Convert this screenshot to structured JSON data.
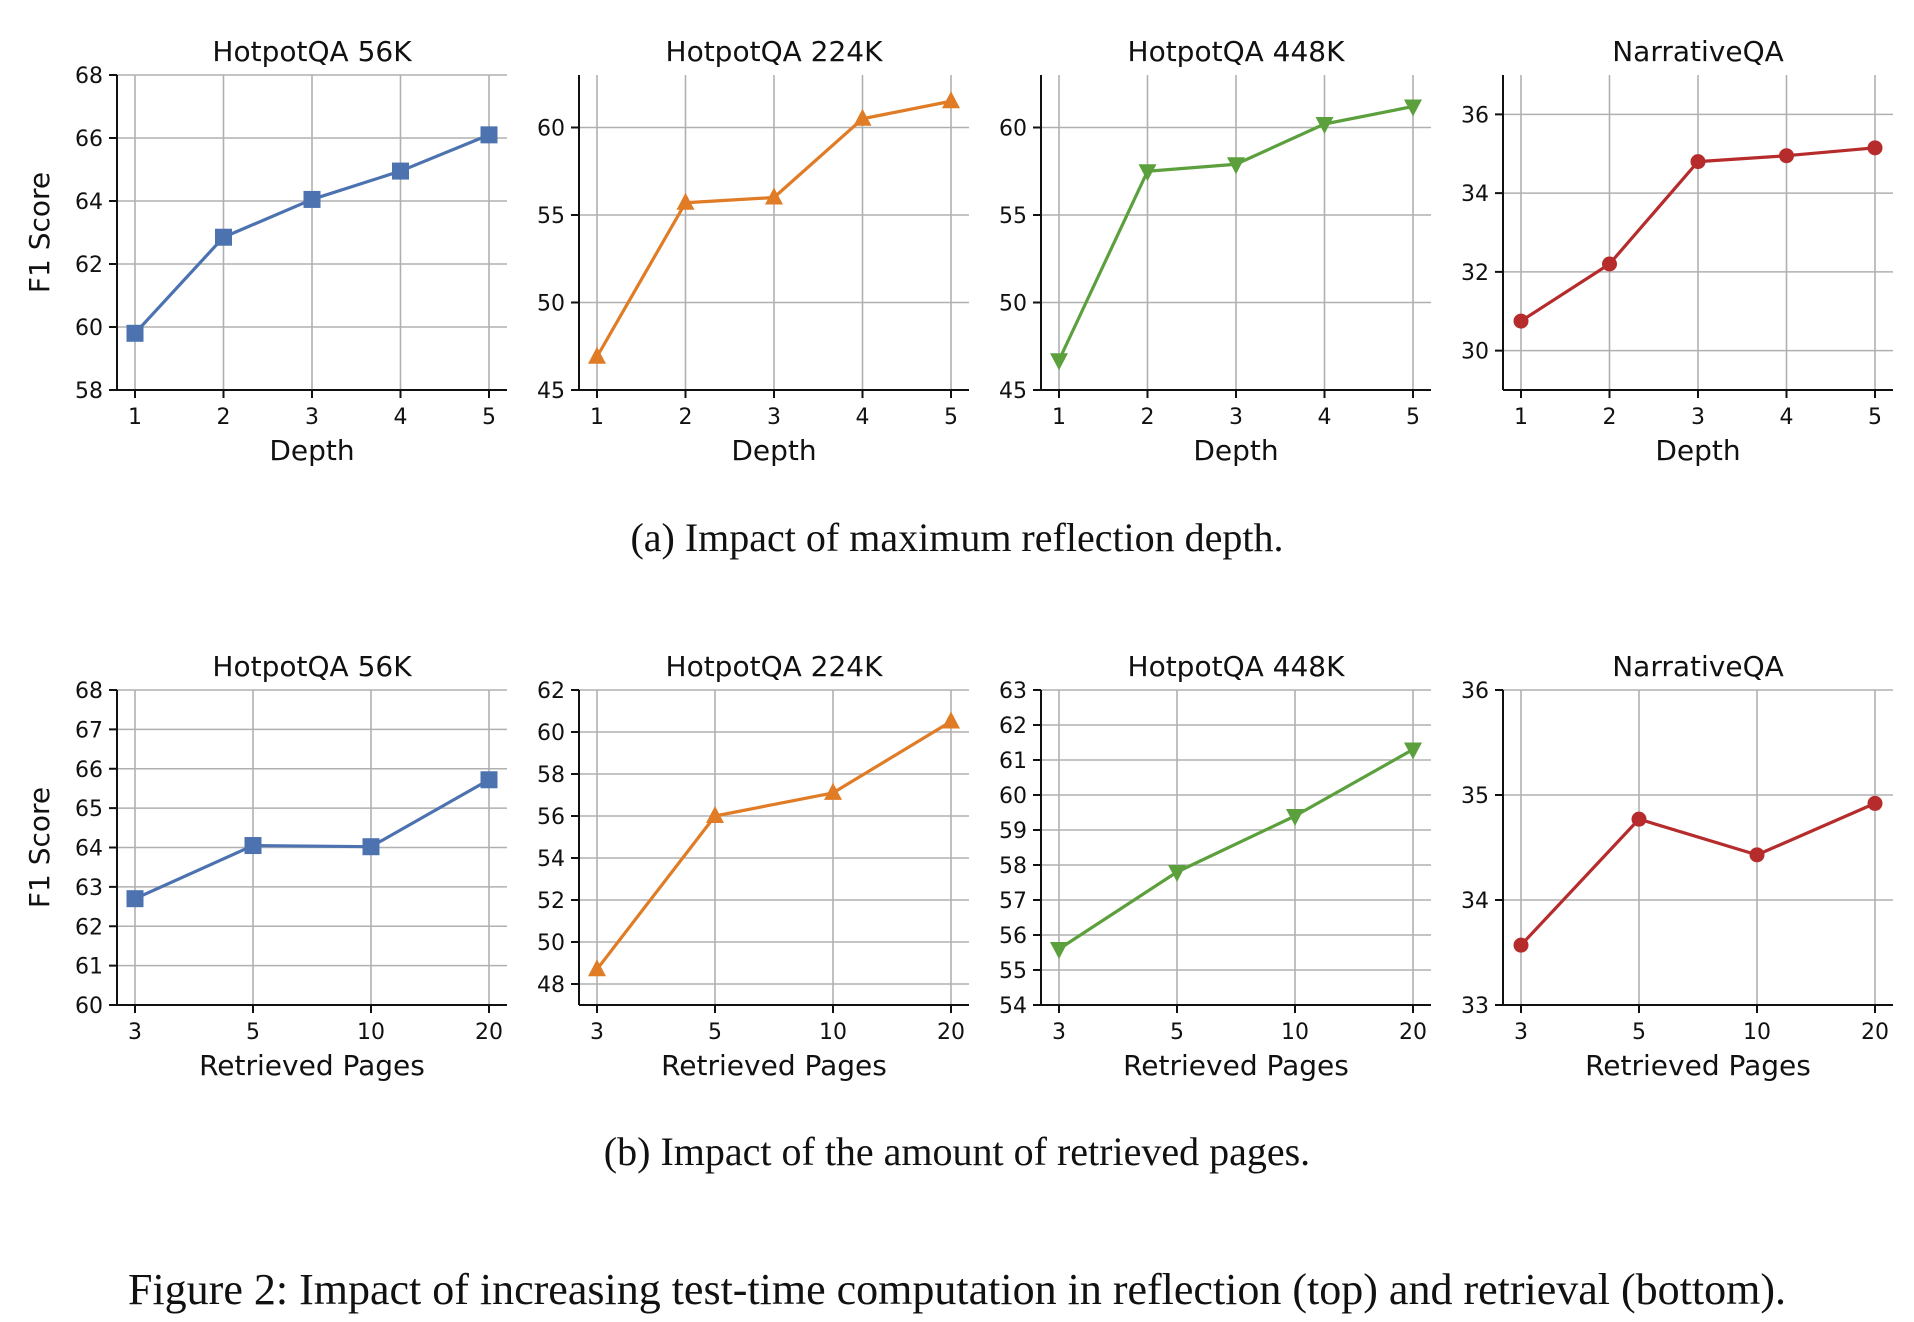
{
  "figure_caption": "Figure 2: Impact of increasing test-time computation in reflection (top) and retrieval (bottom).",
  "row_captions": [
    "(a) Impact of maximum reflection depth.",
    "(b) Impact of the amount of retrieved pages."
  ],
  "colors": {
    "blue": "#4c72b0",
    "orange": "#e07b26",
    "green": "#5ba03c",
    "red": "#b62b2b",
    "grid": "#b0b0b0"
  },
  "chart_data": [
    {
      "type": "line",
      "row": 0,
      "col": 0,
      "title": "HotpotQA 56K",
      "xlabel": "Depth",
      "ylabel": "F1 Score",
      "categories": [
        "1",
        "2",
        "3",
        "4",
        "5"
      ],
      "values": [
        59.8,
        62.85,
        64.05,
        64.95,
        66.1
      ],
      "ylim": [
        58,
        68
      ],
      "yticks": [
        58,
        60,
        62,
        64,
        66,
        68
      ],
      "color": "blue",
      "marker": "square",
      "grid": true
    },
    {
      "type": "line",
      "row": 0,
      "col": 1,
      "title": "HotpotQA 224K",
      "xlabel": "Depth",
      "ylabel": "",
      "categories": [
        "1",
        "2",
        "3",
        "4",
        "5"
      ],
      "values": [
        46.9,
        55.7,
        56.0,
        60.5,
        61.5
      ],
      "ylim": [
        45,
        63
      ],
      "yticks": [
        45,
        50,
        55,
        60
      ],
      "color": "orange",
      "marker": "triangle-up",
      "grid": true
    },
    {
      "type": "line",
      "row": 0,
      "col": 2,
      "title": "HotpotQA 448K",
      "xlabel": "Depth",
      "ylabel": "",
      "categories": [
        "1",
        "2",
        "3",
        "4",
        "5"
      ],
      "values": [
        46.7,
        57.5,
        57.9,
        60.2,
        61.2
      ],
      "ylim": [
        45,
        63
      ],
      "yticks": [
        45,
        50,
        55,
        60
      ],
      "color": "green",
      "marker": "triangle-down",
      "grid": true
    },
    {
      "type": "line",
      "row": 0,
      "col": 3,
      "title": "NarrativeQA",
      "xlabel": "Depth",
      "ylabel": "",
      "categories": [
        "1",
        "2",
        "3",
        "4",
        "5"
      ],
      "values": [
        30.75,
        32.2,
        34.8,
        34.95,
        35.15
      ],
      "ylim": [
        29,
        37
      ],
      "yticks": [
        30,
        32,
        34,
        36
      ],
      "color": "red",
      "marker": "circle",
      "grid": true
    },
    {
      "type": "line",
      "row": 1,
      "col": 0,
      "title": "HotpotQA 56K",
      "xlabel": "Retrieved Pages",
      "ylabel": "F1 Score",
      "categories": [
        "3",
        "5",
        "10",
        "20"
      ],
      "values": [
        62.7,
        64.05,
        64.02,
        65.72
      ],
      "ylim": [
        60,
        68
      ],
      "yticks": [
        60,
        61,
        62,
        63,
        64,
        65,
        66,
        67,
        68
      ],
      "color": "blue",
      "marker": "square",
      "grid": true
    },
    {
      "type": "line",
      "row": 1,
      "col": 1,
      "title": "HotpotQA 224K",
      "xlabel": "Retrieved Pages",
      "ylabel": "",
      "categories": [
        "3",
        "5",
        "10",
        "20"
      ],
      "values": [
        48.7,
        56.0,
        57.1,
        60.5
      ],
      "ylim": [
        47,
        62
      ],
      "yticks": [
        48,
        50,
        52,
        54,
        56,
        58,
        60,
        62
      ],
      "color": "orange",
      "marker": "triangle-up",
      "grid": true
    },
    {
      "type": "line",
      "row": 1,
      "col": 2,
      "title": "HotpotQA 448K",
      "xlabel": "Retrieved Pages",
      "ylabel": "",
      "categories": [
        "3",
        "5",
        "10",
        "20"
      ],
      "values": [
        55.6,
        57.8,
        59.4,
        61.3
      ],
      "ylim": [
        54,
        63
      ],
      "yticks": [
        54,
        55,
        56,
        57,
        58,
        59,
        60,
        61,
        62,
        63
      ],
      "color": "green",
      "marker": "triangle-down",
      "grid": true
    },
    {
      "type": "line",
      "row": 1,
      "col": 3,
      "title": "NarrativeQA",
      "xlabel": "Retrieved Pages",
      "ylabel": "",
      "categories": [
        "3",
        "5",
        "10",
        "20"
      ],
      "values": [
        33.57,
        34.77,
        34.43,
        34.92
      ],
      "ylim": [
        33,
        36
      ],
      "yticks": [
        33,
        34,
        35,
        36
      ],
      "color": "red",
      "marker": "circle",
      "grid": true
    }
  ]
}
